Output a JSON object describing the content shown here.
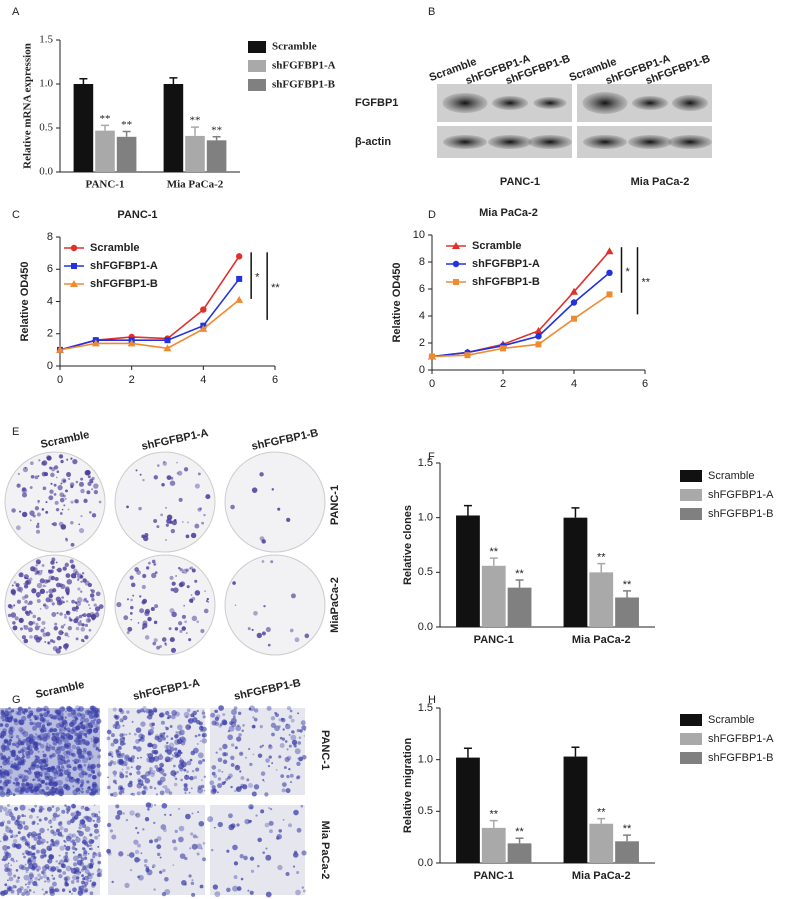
{
  "panel_letters": [
    "A",
    "B",
    "C",
    "D",
    "E",
    "F",
    "G",
    "H"
  ],
  "blot": {
    "lanes": [
      "Scramble",
      "shFGFBP1-A",
      "shFGFBP1-B",
      "Scramble",
      "shFGFBP1-A",
      "shFGFBP1-B"
    ],
    "rows": [
      "FGFBP1",
      "β-actin"
    ],
    "groups": [
      "PANC-1",
      "Mia PaCa-2"
    ]
  },
  "colony": {
    "columns": [
      "Scramble",
      "shFGFBP1-A",
      "shFGFBP1-B"
    ],
    "rows": [
      "PANC-1",
      "MiaPaCa-2"
    ]
  },
  "migration": {
    "columns": [
      "Scramble",
      "shFGFBP1-A",
      "shFGFBP1-B"
    ],
    "rows": [
      "PANC-1",
      "Mia PaCa-2"
    ]
  },
  "chart_data": [
    {
      "type": "bar",
      "y_label": "Relative mRNA expression",
      "categories": [
        "PANC-1",
        "Mia PaCa-2"
      ],
      "series": [
        {
          "name": "Scramble",
          "color": "#111111",
          "values": [
            1.0,
            1.0
          ],
          "errors": [
            0.06,
            0.07
          ]
        },
        {
          "name": "shFGFBP1-A",
          "color": "#a9a9a9",
          "values": [
            0.47,
            0.41
          ],
          "errors": [
            0.06,
            0.1
          ],
          "significance": [
            "**",
            "**"
          ]
        },
        {
          "name": "shFGFBP1-B",
          "color": "#808080",
          "values": [
            0.4,
            0.36
          ],
          "errors": [
            0.06,
            0.04
          ],
          "significance": [
            "**",
            "**"
          ]
        }
      ],
      "ylim": [
        0,
        1.5
      ],
      "yticks": [
        {
          "value": 0,
          "label": "0.0"
        },
        0.5,
        {
          "value": 1,
          "label": "1.0"
        },
        1.5
      ],
      "legend": "right"
    },
    {
      "type": "line",
      "title": "PANC-1",
      "y_label": "Relative OD450",
      "x": [
        0,
        1,
        2,
        3,
        4,
        5
      ],
      "series": [
        {
          "name": "Scramble",
          "color": "#e0302a",
          "marker": "circle",
          "values": [
            1.0,
            1.6,
            1.8,
            1.7,
            3.5,
            6.8
          ]
        },
        {
          "name": "shFGFBP1-A",
          "color": "#2233dd",
          "marker": "square",
          "values": [
            1.0,
            1.6,
            1.6,
            1.6,
            2.5,
            5.4
          ]
        },
        {
          "name": "shFGFBP1-B",
          "color": "#f08a30",
          "marker": "triangle",
          "values": [
            1.0,
            1.4,
            1.4,
            1.1,
            2.3,
            4.1
          ]
        }
      ],
      "xlim": [
        0,
        6
      ],
      "xticks": [
        0,
        2,
        4,
        6
      ],
      "ylim": [
        0,
        8
      ],
      "yticks": [
        0,
        2,
        4,
        6,
        8
      ],
      "legend": "upper left",
      "annotations": [
        "*",
        "**"
      ]
    },
    {
      "type": "line",
      "title": "Mia PaCa-2",
      "y_label": "Relative OD450",
      "x": [
        0,
        1,
        2,
        3,
        4,
        5
      ],
      "series": [
        {
          "name": "Scramble",
          "color": "#e0302a",
          "marker": "triangle",
          "values": [
            1.0,
            1.3,
            1.9,
            2.9,
            5.8,
            8.8
          ]
        },
        {
          "name": "shFGFBP1-A",
          "color": "#2233dd",
          "marker": "circle",
          "values": [
            1.0,
            1.3,
            1.8,
            2.5,
            5.0,
            7.2
          ]
        },
        {
          "name": "shFGFBP1-B",
          "color": "#f08a30",
          "marker": "square",
          "values": [
            1.0,
            1.1,
            1.6,
            1.9,
            3.8,
            5.6
          ]
        }
      ],
      "xlim": [
        0,
        6
      ],
      "xticks": [
        0,
        2,
        4,
        6
      ],
      "ylim": [
        0,
        10
      ],
      "yticks": [
        0,
        2,
        4,
        6,
        8,
        10
      ],
      "legend": "upper left",
      "annotations": [
        "*",
        "**"
      ]
    },
    {
      "type": "bar",
      "y_label": "Relative clones",
      "categories": [
        "PANC-1",
        "Mia PaCa-2"
      ],
      "series": [
        {
          "name": "Scramble",
          "color": "#111111",
          "values": [
            1.02,
            1.0
          ],
          "errors": [
            0.09,
            0.09
          ]
        },
        {
          "name": "shFGFBP1-A",
          "color": "#a9a9a9",
          "values": [
            0.56,
            0.5
          ],
          "errors": [
            0.07,
            0.08
          ],
          "significance": [
            "**",
            "**"
          ]
        },
        {
          "name": "shFGFBP1-B",
          "color": "#808080",
          "values": [
            0.36,
            0.27
          ],
          "errors": [
            0.07,
            0.06
          ],
          "significance": [
            "**",
            "**"
          ]
        }
      ],
      "ylim": [
        0,
        1.5
      ],
      "yticks": [
        {
          "value": 0,
          "label": "0.0"
        },
        0.5,
        {
          "value": 1,
          "label": "1.0"
        },
        1.5
      ],
      "legend": "right"
    },
    {
      "type": "bar",
      "y_label": "Relative migration",
      "categories": [
        "PANC-1",
        "Mia PaCa-2"
      ],
      "series": [
        {
          "name": "Scramble",
          "color": "#111111",
          "values": [
            1.02,
            1.03
          ],
          "errors": [
            0.09,
            0.09
          ]
        },
        {
          "name": "shFGFBP1-A",
          "color": "#a9a9a9",
          "values": [
            0.34,
            0.38
          ],
          "errors": [
            0.07,
            0.05
          ],
          "significance": [
            "**",
            "**"
          ]
        },
        {
          "name": "shFGFBP1-B",
          "color": "#808080",
          "values": [
            0.19,
            0.21
          ],
          "errors": [
            0.05,
            0.06
          ],
          "significance": [
            "**",
            "**"
          ]
        }
      ],
      "ylim": [
        0,
        1.5
      ],
      "yticks": [
        {
          "value": 0,
          "label": "0.0"
        },
        0.5,
        {
          "value": 1,
          "label": "1.0"
        },
        1.5
      ],
      "legend": "right"
    }
  ]
}
